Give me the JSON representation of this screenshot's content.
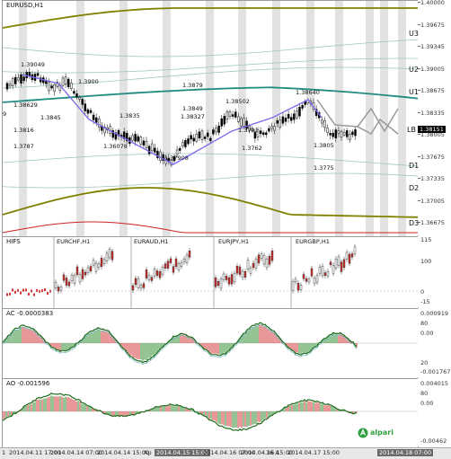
{
  "main_chart": {
    "title": "EURUSD,H1",
    "current_price": "1.38151",
    "price_scale": [
      "1.40000",
      "1.39675",
      "1.39345",
      "1.39005",
      "1.38675",
      "1.38335",
      "1.38005",
      "1.37675",
      "1.37335",
      "1.37005",
      "1.36675"
    ],
    "level_labels": [
      "U3",
      "U2",
      "U1",
      "LB",
      "D1",
      "D2",
      "D3"
    ],
    "annotations": [
      {
        "text": "1.39049"
      },
      {
        "text": "1.3900"
      },
      {
        "text": "1.38629"
      },
      {
        "text": "1.3845"
      },
      {
        "text": "1.3816"
      },
      {
        "text": "1.3787"
      },
      {
        "text": "1.3835"
      },
      {
        "text": "1.36078"
      },
      {
        "text": "1.3879"
      },
      {
        "text": "1.3849"
      },
      {
        "text": "1.38327"
      },
      {
        "text": "1.37908"
      },
      {
        "text": "1.38502"
      },
      {
        "text": "1.3791"
      },
      {
        "text": "1.3762"
      },
      {
        "text": "1.38640"
      },
      {
        "text": "1.3805"
      },
      {
        "text": "1.3775"
      },
      {
        "text": "9"
      }
    ]
  },
  "hifs_panel": {
    "title": "HIFS",
    "sub_titles": [
      "EURCHF,H1",
      "EURAUD,H1",
      "EURJPY,H1",
      "EURGBP,H1"
    ],
    "scale": [
      "115",
      "100",
      "0",
      "-15"
    ]
  },
  "ac_panel": {
    "title": "AC -0.0000383",
    "scale": [
      "0.000919",
      "80",
      "0.00",
      "20",
      "-0.001767"
    ]
  },
  "ao_panel": {
    "title": "AO -0.001596",
    "scale": [
      "0.004015",
      "80",
      "0.00",
      "-0.00462"
    ]
  },
  "time_axis": [
    "1",
    "2014.04.11 17:00",
    "2014.04.14 07:00",
    "2014.04.14 15:00",
    "Ap",
    "2014.04.15 15:00",
    "2014.04.16 07:00",
    "2014.04.16 15:00",
    "16 A",
    "2014.04.17 15:00",
    "2014.04.18 07:00"
  ],
  "brand": {
    "name": "alpari"
  },
  "colors": {
    "olive": "#808000",
    "teal": "#1f8a80",
    "purple": "#7b68ee",
    "bull": "#2a8a2a",
    "bear": "#d03030",
    "gray_band": "#e2e2e2"
  }
}
